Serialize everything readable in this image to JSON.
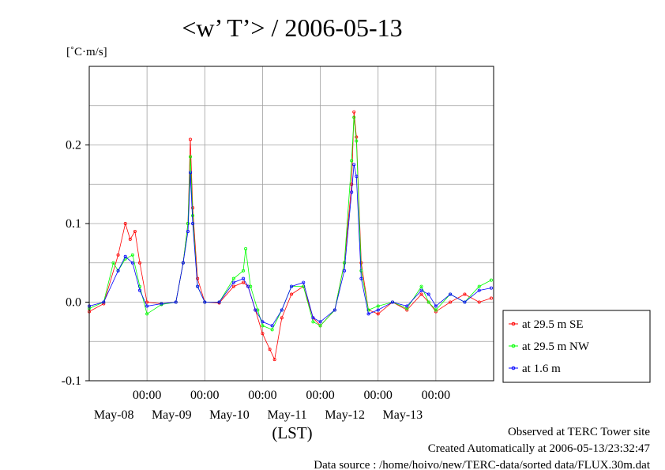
{
  "chart_data": {
    "type": "line",
    "title": "<w’ T’> / 2006-05-13",
    "ylabel": "[˚C·m/s]",
    "xlabel": "(LST)",
    "ylim": [
      -0.1,
      0.3
    ],
    "xlim": [
      "2006-05-07 00:00",
      "2006-05-14 00:00"
    ],
    "y_ticks": [
      {
        "value": 0.2,
        "label": "0.2"
      },
      {
        "value": 0.1,
        "label": "0.1"
      },
      {
        "value": 0.0,
        "label": "0.0"
      },
      {
        "value": -0.1,
        "label": "-0.1"
      }
    ],
    "x_time_ticks": [
      {
        "value": "2006-05-08 00:00",
        "label": "00:00"
      },
      {
        "value": "2006-05-09 00:00",
        "label": "00:00"
      },
      {
        "value": "2006-05-10 00:00",
        "label": "00:00"
      },
      {
        "value": "2006-05-11 00:00",
        "label": "00:00"
      },
      {
        "value": "2006-05-12 00:00",
        "label": "00:00"
      },
      {
        "value": "2006-05-13 00:00",
        "label": "00:00"
      }
    ],
    "x_date_labels": [
      {
        "value": "2006-05-08 00:00",
        "label": "May-08"
      },
      {
        "value": "2006-05-09 00:00",
        "label": "May-09"
      },
      {
        "value": "2006-05-10 00:00",
        "label": "May-10"
      },
      {
        "value": "2006-05-11 00:00",
        "label": "May-11"
      },
      {
        "value": "2006-05-12 00:00",
        "label": "May-12"
      },
      {
        "value": "2006-05-13 00:00",
        "label": "May-13"
      }
    ],
    "grid": true,
    "legend_position": "right",
    "series": [
      {
        "name": "at 29.5 m SE",
        "color": "#ff0000",
        "points": [
          [
            "2006-05-07 00:00",
            -0.012
          ],
          [
            "2006-05-07 06:00",
            -0.002
          ],
          [
            "2006-05-07 12:00",
            0.06
          ],
          [
            "2006-05-07 15:00",
            0.1
          ],
          [
            "2006-05-07 17:00",
            0.08
          ],
          [
            "2006-05-07 19:00",
            0.09
          ],
          [
            "2006-05-07 21:00",
            0.05
          ],
          [
            "2006-05-08 00:00",
            0.0
          ],
          [
            "2006-05-08 06:00",
            -0.002
          ],
          [
            "2006-05-08 12:00",
            0.0
          ],
          [
            "2006-05-08 15:00",
            0.05
          ],
          [
            "2006-05-08 17:00",
            0.1
          ],
          [
            "2006-05-08 18:00",
            0.207
          ],
          [
            "2006-05-08 19:00",
            0.12
          ],
          [
            "2006-05-08 21:00",
            0.03
          ],
          [
            "2006-05-09 00:00",
            0.0
          ],
          [
            "2006-05-09 06:00",
            -0.001
          ],
          [
            "2006-05-09 12:00",
            0.02
          ],
          [
            "2006-05-09 16:00",
            0.025
          ],
          [
            "2006-05-09 18:00",
            0.02
          ],
          [
            "2006-05-09 21:00",
            -0.01
          ],
          [
            "2006-05-10 00:00",
            -0.04
          ],
          [
            "2006-05-10 03:00",
            -0.06
          ],
          [
            "2006-05-10 05:00",
            -0.073
          ],
          [
            "2006-05-10 08:00",
            -0.02
          ],
          [
            "2006-05-10 12:00",
            0.01
          ],
          [
            "2006-05-10 17:00",
            0.02
          ],
          [
            "2006-05-10 21:00",
            -0.02
          ],
          [
            "2006-05-11 00:00",
            -0.03
          ],
          [
            "2006-05-11 06:00",
            -0.01
          ],
          [
            "2006-05-11 10:00",
            0.05
          ],
          [
            "2006-05-11 13:00",
            0.15
          ],
          [
            "2006-05-11 14:00",
            0.242
          ],
          [
            "2006-05-11 15:00",
            0.21
          ],
          [
            "2006-05-11 17:00",
            0.05
          ],
          [
            "2006-05-11 20:00",
            -0.01
          ],
          [
            "2006-05-12 00:00",
            -0.015
          ],
          [
            "2006-05-12 06:00",
            0.0
          ],
          [
            "2006-05-12 12:00",
            -0.01
          ],
          [
            "2006-05-12 18:00",
            0.01
          ],
          [
            "2006-05-12 21:00",
            0.0
          ],
          [
            "2006-05-13 00:00",
            -0.012
          ],
          [
            "2006-05-13 06:00",
            0.0
          ],
          [
            "2006-05-13 12:00",
            0.01
          ],
          [
            "2006-05-13 18:00",
            0.0
          ],
          [
            "2006-05-13 23:00",
            0.005
          ]
        ]
      },
      {
        "name": "at 29.5 m NW",
        "color": "#00ff00",
        "points": [
          [
            "2006-05-07 00:00",
            -0.008
          ],
          [
            "2006-05-07 06:00",
            0.0
          ],
          [
            "2006-05-07 10:00",
            0.05
          ],
          [
            "2006-05-07 12:00",
            0.04
          ],
          [
            "2006-05-07 15:00",
            0.055
          ],
          [
            "2006-05-07 18:00",
            0.06
          ],
          [
            "2006-05-07 21:00",
            0.02
          ],
          [
            "2006-05-08 00:00",
            -0.015
          ],
          [
            "2006-05-08 06:00",
            -0.003
          ],
          [
            "2006-05-08 12:00",
            0.0
          ],
          [
            "2006-05-08 15:00",
            0.05
          ],
          [
            "2006-05-08 17:00",
            0.1
          ],
          [
            "2006-05-08 18:00",
            0.185
          ],
          [
            "2006-05-08 19:00",
            0.11
          ],
          [
            "2006-05-08 21:00",
            0.02
          ],
          [
            "2006-05-09 00:00",
            0.0
          ],
          [
            "2006-05-09 06:00",
            0.0
          ],
          [
            "2006-05-09 12:00",
            0.03
          ],
          [
            "2006-05-09 16:00",
            0.04
          ],
          [
            "2006-05-09 17:00",
            0.068
          ],
          [
            "2006-05-09 19:00",
            0.02
          ],
          [
            "2006-05-09 22:00",
            -0.01
          ],
          [
            "2006-05-10 00:00",
            -0.03
          ],
          [
            "2006-05-10 04:00",
            -0.035
          ],
          [
            "2006-05-10 08:00",
            -0.01
          ],
          [
            "2006-05-10 12:00",
            0.02
          ],
          [
            "2006-05-10 17:00",
            0.02
          ],
          [
            "2006-05-10 21:00",
            -0.025
          ],
          [
            "2006-05-11 00:00",
            -0.03
          ],
          [
            "2006-05-11 06:00",
            -0.01
          ],
          [
            "2006-05-11 10:00",
            0.05
          ],
          [
            "2006-05-11 13:00",
            0.18
          ],
          [
            "2006-05-11 14:00",
            0.235
          ],
          [
            "2006-05-11 15:00",
            0.205
          ],
          [
            "2006-05-11 17:00",
            0.04
          ],
          [
            "2006-05-11 20:00",
            -0.01
          ],
          [
            "2006-05-12 00:00",
            -0.005
          ],
          [
            "2006-05-12 06:00",
            0.0
          ],
          [
            "2006-05-12 12:00",
            -0.008
          ],
          [
            "2006-05-12 18:00",
            0.02
          ],
          [
            "2006-05-12 21:00",
            0.0
          ],
          [
            "2006-05-13 00:00",
            -0.01
          ],
          [
            "2006-05-13 06:00",
            0.01
          ],
          [
            "2006-05-13 12:00",
            0.0
          ],
          [
            "2006-05-13 18:00",
            0.02
          ],
          [
            "2006-05-13 23:00",
            0.028
          ]
        ]
      },
      {
        "name": "at 1.6 m",
        "color": "#0000ff",
        "points": [
          [
            "2006-05-07 00:00",
            -0.005
          ],
          [
            "2006-05-07 06:00",
            0.0
          ],
          [
            "2006-05-07 12:00",
            0.04
          ],
          [
            "2006-05-07 15:00",
            0.058
          ],
          [
            "2006-05-07 18:00",
            0.05
          ],
          [
            "2006-05-07 21:00",
            0.015
          ],
          [
            "2006-05-08 00:00",
            -0.005
          ],
          [
            "2006-05-08 06:00",
            -0.002
          ],
          [
            "2006-05-08 12:00",
            0.0
          ],
          [
            "2006-05-08 15:00",
            0.05
          ],
          [
            "2006-05-08 17:00",
            0.09
          ],
          [
            "2006-05-08 18:00",
            0.165
          ],
          [
            "2006-05-08 19:00",
            0.1
          ],
          [
            "2006-05-08 21:00",
            0.02
          ],
          [
            "2006-05-09 00:00",
            0.0
          ],
          [
            "2006-05-09 06:00",
            0.0
          ],
          [
            "2006-05-09 12:00",
            0.025
          ],
          [
            "2006-05-09 16:00",
            0.03
          ],
          [
            "2006-05-09 18:00",
            0.02
          ],
          [
            "2006-05-09 21:00",
            -0.01
          ],
          [
            "2006-05-10 00:00",
            -0.025
          ],
          [
            "2006-05-10 04:00",
            -0.03
          ],
          [
            "2006-05-10 08:00",
            -0.01
          ],
          [
            "2006-05-10 12:00",
            0.02
          ],
          [
            "2006-05-10 17:00",
            0.025
          ],
          [
            "2006-05-10 21:00",
            -0.02
          ],
          [
            "2006-05-11 00:00",
            -0.025
          ],
          [
            "2006-05-11 06:00",
            -0.01
          ],
          [
            "2006-05-11 10:00",
            0.04
          ],
          [
            "2006-05-11 13:00",
            0.14
          ],
          [
            "2006-05-11 14:00",
            0.175
          ],
          [
            "2006-05-11 15:00",
            0.16
          ],
          [
            "2006-05-11 17:00",
            0.03
          ],
          [
            "2006-05-11 20:00",
            -0.015
          ],
          [
            "2006-05-12 00:00",
            -0.01
          ],
          [
            "2006-05-12 06:00",
            0.0
          ],
          [
            "2006-05-12 12:00",
            -0.005
          ],
          [
            "2006-05-12 18:00",
            0.015
          ],
          [
            "2006-05-12 21:00",
            0.01
          ],
          [
            "2006-05-13 00:00",
            -0.005
          ],
          [
            "2006-05-13 06:00",
            0.01
          ],
          [
            "2006-05-13 12:00",
            0.0
          ],
          [
            "2006-05-13 18:00",
            0.015
          ],
          [
            "2006-05-13 23:00",
            0.018
          ]
        ]
      }
    ]
  },
  "footer": {
    "observed": "Observed at TERC Tower site",
    "created": "Created Automatically at 2006-05-13/23:32:47",
    "source": "Data source : /home/hoivo/new/TERC-data/sorted  data/FLUX.30m.dat"
  }
}
